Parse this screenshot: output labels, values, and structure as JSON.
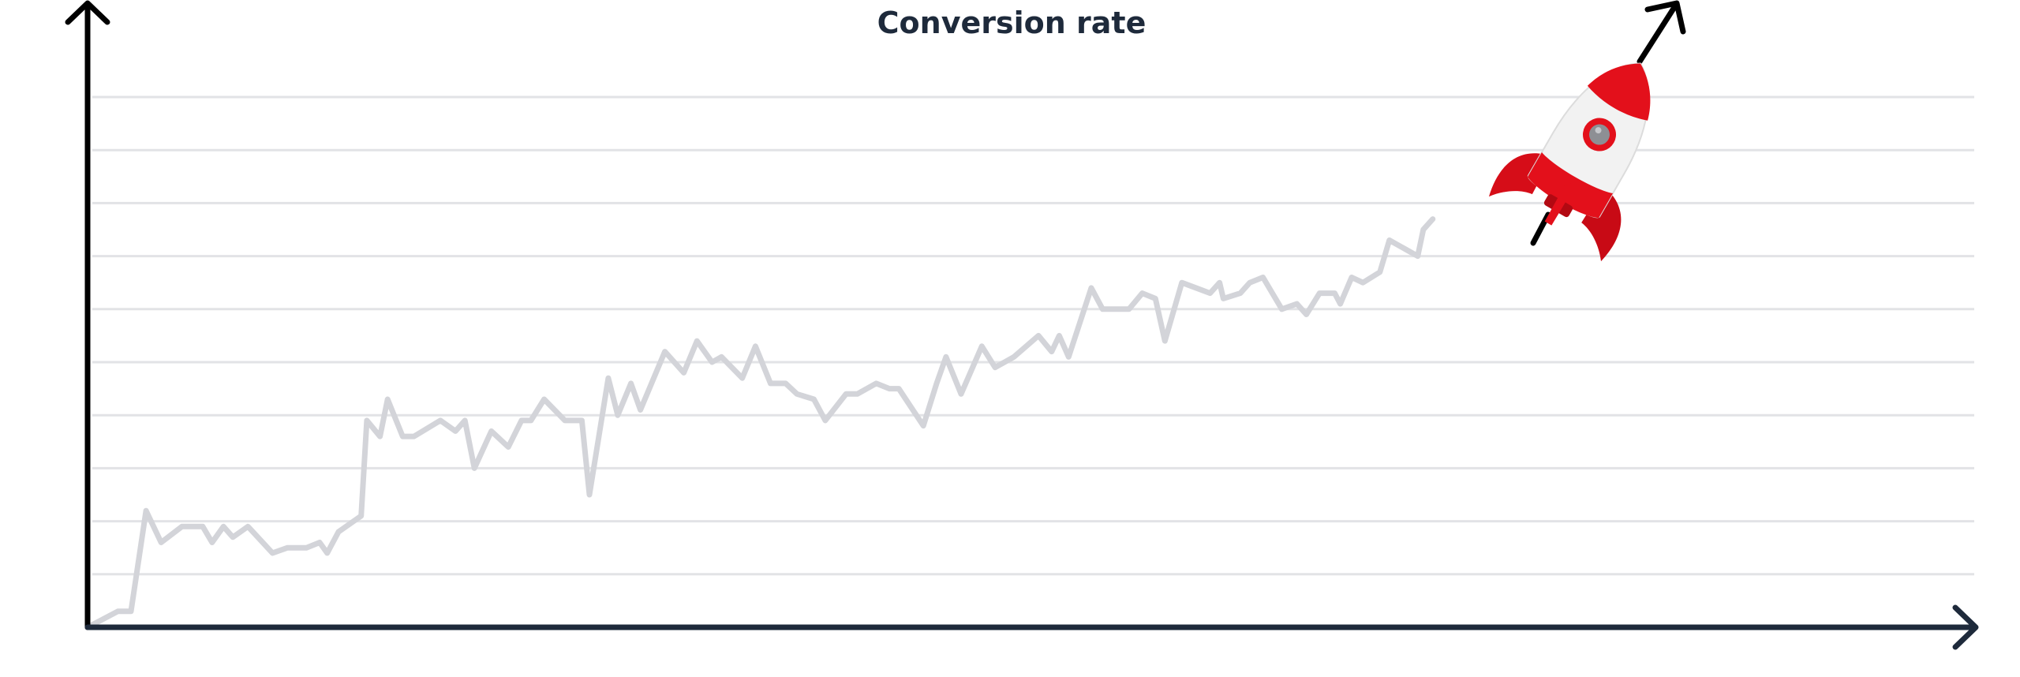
{
  "chart_data": {
    "type": "line",
    "title": "Conversion rate",
    "xlabel": "",
    "ylabel": "",
    "grid": true,
    "gridline_count": 10,
    "ylim": [
      0,
      10
    ],
    "xlim": [
      0,
      100
    ],
    "colors": {
      "title": "#1e2a3b",
      "axis": "#000000",
      "x_axis": "#1e2a3b",
      "grid": "#e2e3e6",
      "line": "#d3d4d9",
      "trend_arrow": "#000000",
      "rocket_red": "#e3101b",
      "rocket_white": "#f2f2f2"
    },
    "icons": [
      "rocket-icon",
      "trend-arrow-icon"
    ],
    "series": [
      {
        "x": [
          0,
          1.6,
          2.3,
          3.1,
          3.9,
          5.0,
          6.1,
          6.6,
          7.2,
          7.7,
          8.5,
          9.8,
          10.6,
          11.6,
          12.3,
          12.7,
          13.3,
          14.5,
          14.8,
          15.5,
          15.9,
          16.7,
          17.3,
          18.7,
          19.5,
          20.0,
          20.5,
          21.4,
          22.3,
          23.0,
          23.5,
          24.2,
          25.3,
          26.2,
          26.6,
          27.6,
          28.1,
          28.8,
          29.3,
          30.6,
          31.6,
          32.3,
          33.1,
          33.6,
          34.7,
          35.4,
          36.2,
          37.0,
          37.6,
          38.5,
          39.1,
          40.2,
          40.8,
          41.8,
          42.5,
          43.0,
          44.3,
          45.0,
          45.5,
          46.3,
          47.4,
          48.1,
          49.1,
          50.4,
          51.1,
          51.5,
          52.0,
          53.2,
          53.8,
          54.3,
          55.2,
          55.9,
          56.6,
          57.1,
          58.0,
          59.5,
          60.0,
          60.2,
          61.1,
          61.6,
          62.3,
          62.8,
          63.3,
          64.1,
          64.6,
          65.3,
          66.1,
          66.4,
          67.0,
          67.6,
          68.5,
          69.0,
          70.5,
          70.8,
          71.3
        ],
        "y": [
          0,
          0.3,
          0.3,
          2.2,
          1.6,
          1.9,
          1.9,
          1.6,
          1.9,
          1.7,
          1.9,
          1.4,
          1.5,
          1.5,
          1.6,
          1.4,
          1.8,
          2.1,
          3.9,
          3.6,
          4.3,
          3.6,
          3.6,
          3.9,
          3.7,
          3.9,
          3.0,
          3.7,
          3.4,
          3.9,
          3.9,
          4.3,
          3.9,
          3.9,
          2.5,
          4.7,
          4.0,
          4.6,
          4.1,
          5.2,
          4.8,
          5.4,
          5.0,
          5.1,
          4.7,
          5.3,
          4.6,
          4.6,
          4.4,
          4.3,
          3.9,
          4.4,
          4.4,
          4.6,
          4.5,
          4.5,
          3.8,
          4.6,
          5.1,
          4.4,
          5.3,
          4.9,
          5.1,
          5.5,
          5.2,
          5.5,
          5.1,
          6.4,
          6.0,
          6.0,
          6.0,
          6.3,
          6.2,
          5.4,
          6.5,
          6.3,
          6.5,
          6.2,
          6.3,
          6.5,
          6.6,
          6.3,
          6.0,
          6.1,
          5.9,
          6.3,
          6.3,
          6.1,
          6.6,
          6.5,
          6.7,
          7.3,
          7.0,
          7.5,
          7.7
        ]
      }
    ]
  }
}
